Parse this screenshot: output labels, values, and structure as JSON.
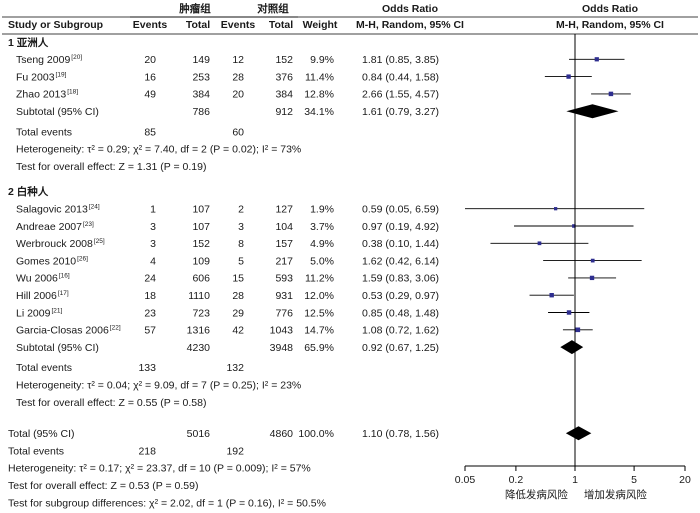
{
  "header": {
    "study": "Study or Subgroup",
    "group1": "肿瘤组",
    "group2": "对照组",
    "events": "Events",
    "total": "Total",
    "weight": "Weight",
    "or_title": "Odds Ratio",
    "or_method": "M-H, Random, 95% CI",
    "plot_title": "Odds Ratio",
    "plot_method": "M-H, Random, 95% CI"
  },
  "chart_data": {
    "type": "forest",
    "x_scale": "log",
    "xlim": [
      0.05,
      20
    ],
    "null_line": 1,
    "x_ticks": [
      {
        "value": 0.05,
        "label": "0.05"
      },
      {
        "value": 0.2,
        "label": "0.2"
      },
      {
        "value": 1,
        "label": "1"
      },
      {
        "value": 5,
        "label": "5"
      },
      {
        "value": 20,
        "label": "20"
      }
    ],
    "favours_left": "降低发病风险",
    "favours_right": "增加发病风险",
    "subgroups": [
      {
        "title": "1 亚洲人",
        "studies": [
          {
            "name": "Tseng 2009",
            "ref": "[20]",
            "e1": "20",
            "n1": "149",
            "e2": "12",
            "n2": "152",
            "weight": "9.9%",
            "ci_text": "1.81 (0.85, 3.85)",
            "or": 1.81,
            "lo": 0.85,
            "hi": 3.85,
            "w": 9.9
          },
          {
            "name": "Fu 2003",
            "ref": "[19]",
            "e1": "16",
            "n1": "253",
            "e2": "28",
            "n2": "376",
            "weight": "11.4%",
            "ci_text": "0.84 (0.44, 1.58)",
            "or": 0.84,
            "lo": 0.44,
            "hi": 1.58,
            "w": 11.4
          },
          {
            "name": "Zhao 2013",
            "ref": "[18]",
            "e1": "49",
            "n1": "384",
            "e2": "20",
            "n2": "384",
            "weight": "12.8%",
            "ci_text": "2.66 (1.55, 4.57)",
            "or": 2.66,
            "lo": 1.55,
            "hi": 4.57,
            "w": 12.8
          }
        ],
        "subtotal": {
          "label": "Subtotal (95% CI)",
          "n1": "786",
          "n2": "912",
          "weight": "34.1%",
          "ci_text": "1.61 (0.79, 3.27)",
          "or": 1.61,
          "lo": 0.79,
          "hi": 3.27
        },
        "total_events": {
          "label": "Total events",
          "e1": "85",
          "e2": "60"
        },
        "heterogeneity": "Heterogeneity: τ² = 0.29; χ² = 7.40, df = 2 (P = 0.02); I² = 73%",
        "overall_effect": "Test for overall effect: Z = 1.31 (P = 0.19)"
      },
      {
        "title": "2 白种人",
        "studies": [
          {
            "name": "Salagovic 2013",
            "ref": "[24]",
            "e1": "1",
            "n1": "107",
            "e2": "2",
            "n2": "127",
            "weight": "1.9%",
            "ci_text": "0.59 (0.05, 6.59)",
            "or": 0.59,
            "lo": 0.05,
            "hi": 6.59,
            "w": 1.9
          },
          {
            "name": "Andreae 2007",
            "ref": "[23]",
            "e1": "3",
            "n1": "107",
            "e2": "3",
            "n2": "104",
            "weight": "3.7%",
            "ci_text": "0.97 (0.19, 4.92)",
            "or": 0.97,
            "lo": 0.19,
            "hi": 4.92,
            "w": 3.7
          },
          {
            "name": "Werbrouck 2008",
            "ref": "[25]",
            "e1": "3",
            "n1": "152",
            "e2": "8",
            "n2": "157",
            "weight": "4.9%",
            "ci_text": "0.38 (0.10, 1.44)",
            "or": 0.38,
            "lo": 0.1,
            "hi": 1.44,
            "w": 4.9
          },
          {
            "name": "Gomes 2010",
            "ref": "[26]",
            "e1": "4",
            "n1": "109",
            "e2": "5",
            "n2": "217",
            "weight": "5.0%",
            "ci_text": "1.62 (0.42, 6.14)",
            "or": 1.62,
            "lo": 0.42,
            "hi": 6.14,
            "w": 5.0
          },
          {
            "name": "Wu 2006",
            "ref": "[16]",
            "e1": "24",
            "n1": "606",
            "e2": "15",
            "n2": "593",
            "weight": "11.2%",
            "ci_text": "1.59 (0.83, 3.06)",
            "or": 1.59,
            "lo": 0.83,
            "hi": 3.06,
            "w": 11.2
          },
          {
            "name": "Hill 2006",
            "ref": "[17]",
            "e1": "18",
            "n1": "1110",
            "e2": "28",
            "n2": "931",
            "weight": "12.0%",
            "ci_text": "0.53 (0.29, 0.97)",
            "or": 0.53,
            "lo": 0.29,
            "hi": 0.97,
            "w": 12.0
          },
          {
            "name": "Li 2009",
            "ref": "[21]",
            "e1": "23",
            "n1": "723",
            "e2": "29",
            "n2": "776",
            "weight": "12.5%",
            "ci_text": "0.85 (0.48, 1.48)",
            "or": 0.85,
            "lo": 0.48,
            "hi": 1.48,
            "w": 12.5
          },
          {
            "name": "Garcia-Closas 2006",
            "ref": "[22]",
            "e1": "57",
            "n1": "1316",
            "e2": "42",
            "n2": "1043",
            "weight": "14.7%",
            "ci_text": "1.08 (0.72, 1.62)",
            "or": 1.08,
            "lo": 0.72,
            "hi": 1.62,
            "w": 14.7
          }
        ],
        "subtotal": {
          "label": "Subtotal (95% CI)",
          "n1": "4230",
          "n2": "3948",
          "weight": "65.9%",
          "ci_text": "0.92 (0.67, 1.25)",
          "or": 0.92,
          "lo": 0.67,
          "hi": 1.25
        },
        "total_events": {
          "label": "Total events",
          "e1": "133",
          "e2": "132"
        },
        "heterogeneity": "Heterogeneity: τ² = 0.04; χ² = 9.09, df = 7 (P = 0.25); I² = 23%",
        "overall_effect": "Test for overall effect: Z = 0.55 (P = 0.58)"
      }
    ],
    "total": {
      "label": "Total (95% CI)",
      "n1": "5016",
      "n2": "4860",
      "weight": "100.0%",
      "ci_text": "1.10 (0.78, 1.56)",
      "or": 1.1,
      "lo": 0.78,
      "hi": 1.56
    },
    "total_events": {
      "label": "Total events",
      "e1": "218",
      "e2": "192"
    },
    "heterogeneity": "Heterogeneity: τ² = 0.17; χ² = 23.37, df = 10 (P = 0.009); I² = 57%",
    "overall_effect": "Test for overall effect: Z = 0.53 (P = 0.59)",
    "subgroup_differences": "Test for subgroup differences: χ² = 2.02, df = 1 (P = 0.16), I² = 50.5%",
    "colors": {
      "square": "#2e2e8f",
      "diamond": "#000000",
      "line": "#000000"
    }
  }
}
